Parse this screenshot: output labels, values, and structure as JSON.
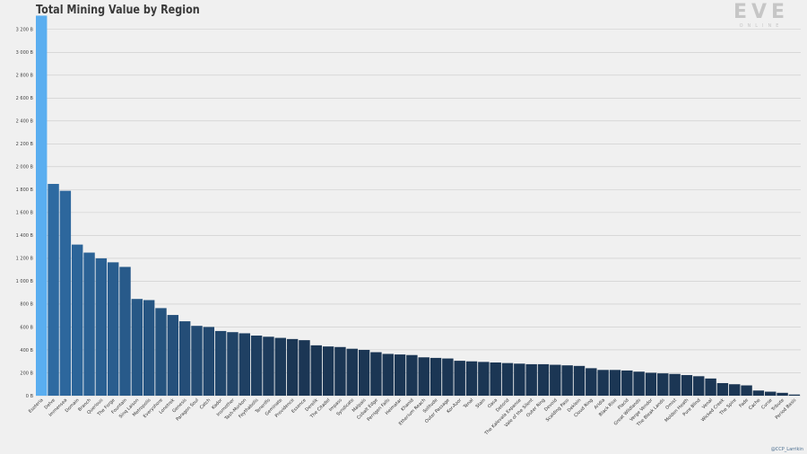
{
  "chart_data": {
    "type": "bar",
    "title": "Total Mining Value by Region",
    "xlabel": "",
    "ylabel": "",
    "ylim": [
      0,
      3300
    ],
    "yticks": [
      0,
      200,
      400,
      600,
      800,
      1000,
      1200,
      1400,
      1600,
      1800,
      2000,
      2200,
      2400,
      2600,
      2800,
      3000,
      3200
    ],
    "ytick_labels": [
      "0 B",
      "200 B",
      "400 B",
      "600 B",
      "800 B",
      "1 000 B",
      "1 200 B",
      "1 400 B",
      "1 600 B",
      "1 800 B",
      "2 000 B",
      "2 200 B",
      "2 400 B",
      "2 600 B",
      "2 800 B",
      "3 000 B",
      "3 200 B"
    ],
    "grid": true,
    "legend": "none",
    "colors": {
      "highlight": "#5aaef0",
      "dark": "#1b3654",
      "mid": "#2e6aa1",
      "grid": "#c9c9c9"
    },
    "categories": [
      "Esoteria",
      "Delve",
      "Immensea",
      "Domain",
      "Branch",
      "Querious",
      "The Forge",
      "Fountain",
      "Sinq Laison",
      "Metropolis",
      "Everyshore",
      "Lonetrek",
      "Genesis",
      "Paragon Soul",
      "Catch",
      "Kador",
      "Insmother",
      "Tash-Murkon",
      "Feythabolis",
      "Tenerifis",
      "Geminate",
      "Providence",
      "Essence",
      "Derelik",
      "The Citadel",
      "Impass",
      "Syndicate",
      "Malpais",
      "Cobalt Edge",
      "Perrigen Falls",
      "Heimatar",
      "Khanid",
      "Etherium Reach",
      "Solitude",
      "Outer Passage",
      "Kor-Azor",
      "Tenal",
      "Stain",
      "Oasa",
      "Detorid",
      "The Kalevala Expanse",
      "Vale of the Silent",
      "Outer Ring",
      "Devoid",
      "Scalding Pass",
      "Deklein",
      "Cloud Ring",
      "Aridia",
      "Black Rise",
      "Placid",
      "Great Wildlands",
      "Verge Vendor",
      "The Bleak Lands",
      "Omist",
      "Molden Heath",
      "Pure Blind",
      "Venal",
      "Wicked Creek",
      "The Spire",
      "Fade",
      "Cache",
      "Curse",
      "Tribute",
      "Period Basis"
    ],
    "values": [
      3320,
      1850,
      1790,
      1320,
      1250,
      1200,
      1165,
      1125,
      845,
      835,
      765,
      705,
      650,
      610,
      600,
      565,
      555,
      545,
      525,
      515,
      505,
      495,
      485,
      440,
      430,
      425,
      410,
      400,
      380,
      365,
      360,
      355,
      335,
      330,
      325,
      305,
      300,
      295,
      290,
      285,
      280,
      275,
      275,
      270,
      265,
      260,
      240,
      225,
      225,
      220,
      210,
      200,
      195,
      190,
      180,
      170,
      150,
      110,
      100,
      90,
      45,
      35,
      25,
      10
    ]
  },
  "credit": "@CCP_Larrikin",
  "logo": {
    "wordmark": "EVE",
    "subtitle": "ONLINE"
  }
}
